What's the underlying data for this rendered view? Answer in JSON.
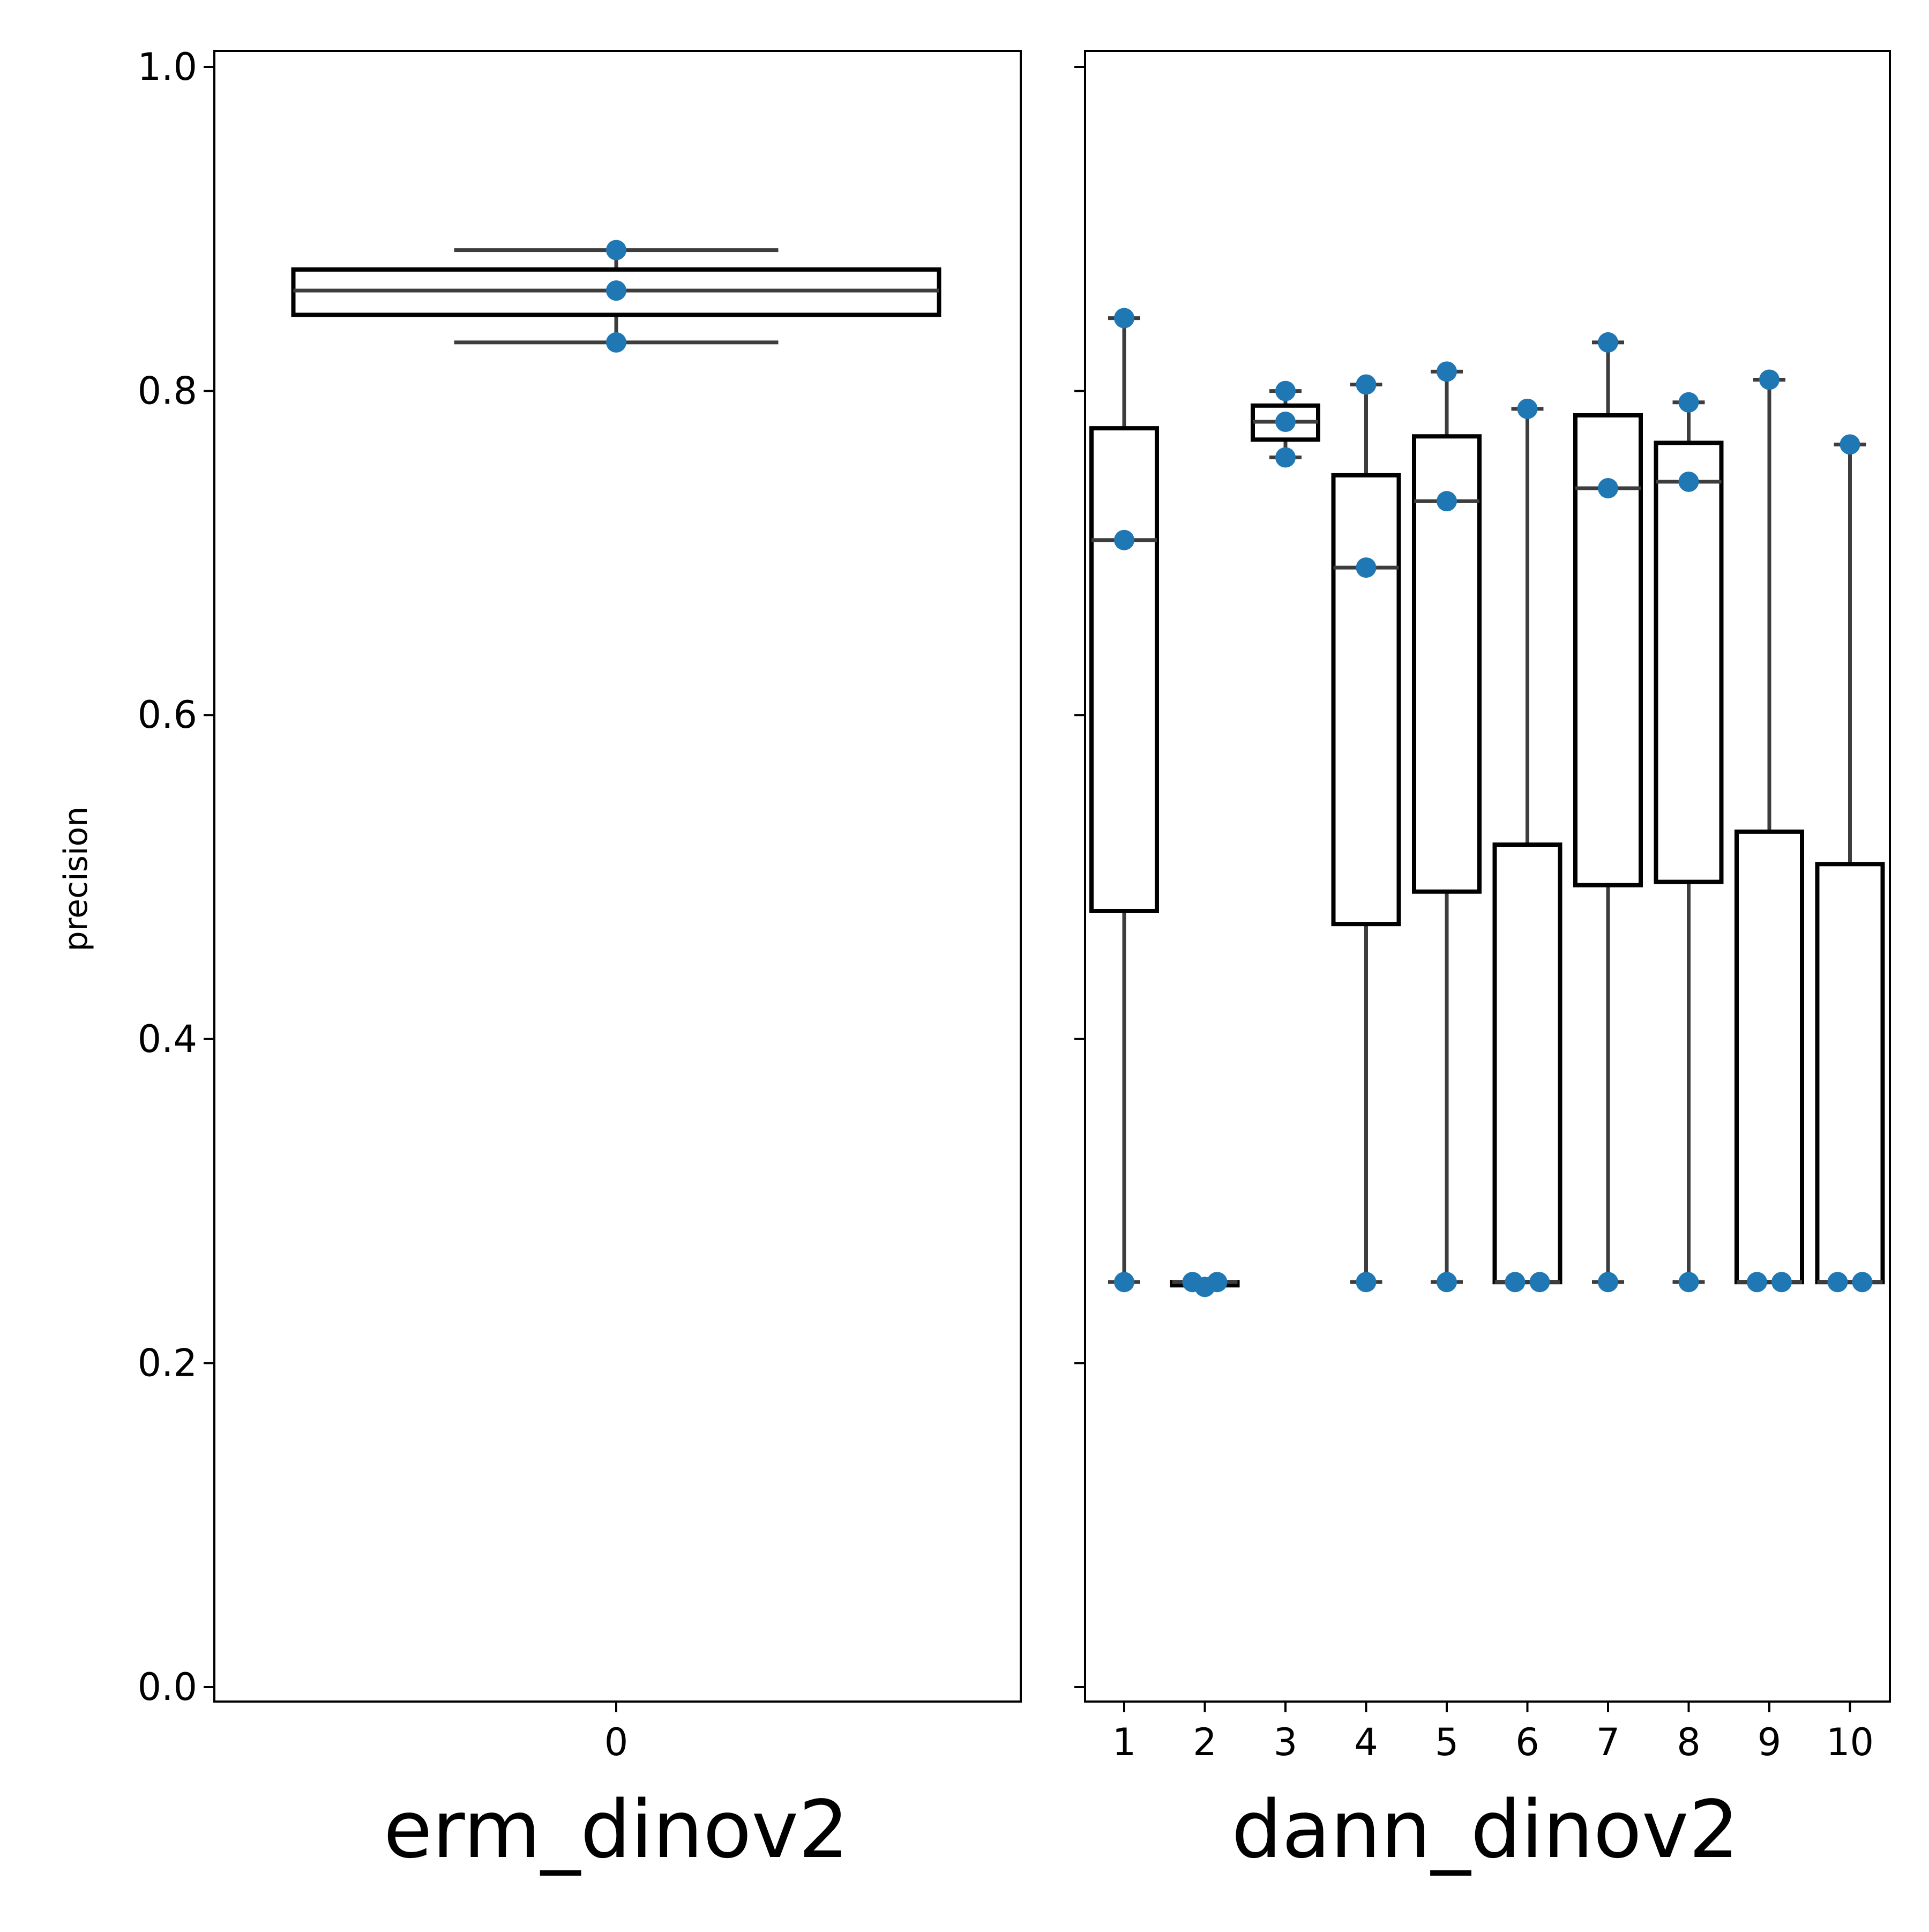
{
  "chart_data": [
    {
      "type": "box",
      "xlabel": "erm_dinov2",
      "ylabel": "precision",
      "ylim": [
        0.0,
        1.0
      ],
      "yticks": [
        "0.0",
        "0.2",
        "0.4",
        "0.6",
        "0.8",
        "1.0"
      ],
      "categories": [
        "0"
      ],
      "boxes": [
        {
          "category": "0",
          "whisker_low": 0.83,
          "q1": 0.847,
          "median": 0.862,
          "q3": 0.875,
          "whisker_high": 0.887,
          "points": [
            0.887,
            0.862,
            0.83
          ]
        }
      ]
    },
    {
      "type": "box",
      "xlabel": "dann_dinov2",
      "ylim": [
        0.0,
        1.0
      ],
      "shared_y": true,
      "categories": [
        "1",
        "2",
        "3",
        "4",
        "5",
        "6",
        "7",
        "8",
        "9",
        "10"
      ],
      "boxes": [
        {
          "category": "1",
          "whisker_low": 0.25,
          "q1": 0.479,
          "median": 0.708,
          "q3": 0.777,
          "whisker_high": 0.845,
          "points": [
            0.845,
            0.708,
            0.25
          ]
        },
        {
          "category": "2",
          "whisker_low": 0.247,
          "q1": 0.248,
          "median": 0.25,
          "q3": 0.25,
          "whisker_high": 0.25,
          "points": [
            0.25,
            0.247,
            0.25
          ]
        },
        {
          "category": "3",
          "whisker_low": 0.759,
          "q1": 0.77,
          "median": 0.781,
          "q3": 0.791,
          "whisker_high": 0.8,
          "points": [
            0.8,
            0.781,
            0.759
          ]
        },
        {
          "category": "4",
          "whisker_low": 0.25,
          "q1": 0.471,
          "median": 0.691,
          "q3": 0.748,
          "whisker_high": 0.804,
          "points": [
            0.804,
            0.691,
            0.25
          ]
        },
        {
          "category": "5",
          "whisker_low": 0.25,
          "q1": 0.491,
          "median": 0.732,
          "q3": 0.772,
          "whisker_high": 0.812,
          "points": [
            0.812,
            0.732,
            0.25
          ]
        },
        {
          "category": "6",
          "whisker_low": 0.25,
          "q1": 0.25,
          "median": 0.25,
          "q3": 0.52,
          "whisker_high": 0.789,
          "points": [
            0.789,
            0.25,
            0.25
          ]
        },
        {
          "category": "7",
          "whisker_low": 0.25,
          "q1": 0.495,
          "median": 0.74,
          "q3": 0.785,
          "whisker_high": 0.83,
          "points": [
            0.83,
            0.74,
            0.25
          ]
        },
        {
          "category": "8",
          "whisker_low": 0.25,
          "q1": 0.497,
          "median": 0.744,
          "q3": 0.768,
          "whisker_high": 0.793,
          "points": [
            0.793,
            0.744,
            0.25
          ]
        },
        {
          "category": "9",
          "whisker_low": 0.25,
          "q1": 0.25,
          "median": 0.25,
          "q3": 0.528,
          "whisker_high": 0.807,
          "points": [
            0.807,
            0.25,
            0.25
          ]
        },
        {
          "category": "10",
          "whisker_low": 0.25,
          "q1": 0.25,
          "median": 0.25,
          "q3": 0.508,
          "whisker_high": 0.767,
          "points": [
            0.767,
            0.25,
            0.25
          ]
        }
      ]
    }
  ],
  "colors": {
    "box_edge": "#000000",
    "whisker": "#3d3d3d",
    "points": "#1f77b4",
    "background": "#ffffff"
  }
}
